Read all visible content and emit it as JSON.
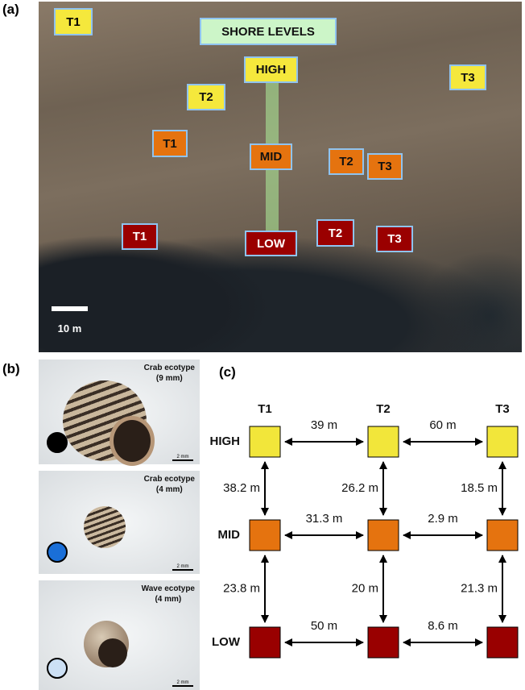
{
  "panel_a": {
    "label": "(a)",
    "title": "SHORE LEVELS",
    "levels": {
      "high": "HIGH",
      "mid": "MID",
      "low": "LOW"
    },
    "markers": {
      "high": [
        "T1",
        "T2",
        "T3"
      ],
      "mid": [
        "T1",
        "T2",
        "T3"
      ],
      "low": [
        "T1",
        "T2",
        "T3"
      ]
    },
    "scale_bar": "10 m"
  },
  "panel_b": {
    "label": "(b)",
    "photos": [
      {
        "caption": "Crab ecotype",
        "size": "(9 mm)",
        "scale": "2 mm"
      },
      {
        "caption": "Crab ecotype",
        "size": "(4 mm)",
        "scale": "2 mm"
      },
      {
        "caption": "Wave ecotype",
        "size": "(4 mm)",
        "scale": "2 mm"
      }
    ]
  },
  "panel_c": {
    "label": "(c)",
    "columns": [
      "T1",
      "T2",
      "T3"
    ],
    "rows": [
      "HIGH",
      "MID",
      "LOW"
    ],
    "horizontal": [
      [
        "39 m",
        "60 m"
      ],
      [
        "31.3 m",
        "2.9 m"
      ],
      [
        "50 m",
        "8.6 m"
      ]
    ],
    "vertical": [
      [
        "38.2 m",
        "26.2 m",
        "18.5 m"
      ],
      [
        "23.8 m",
        "20 m",
        "21.3 m"
      ]
    ]
  }
}
